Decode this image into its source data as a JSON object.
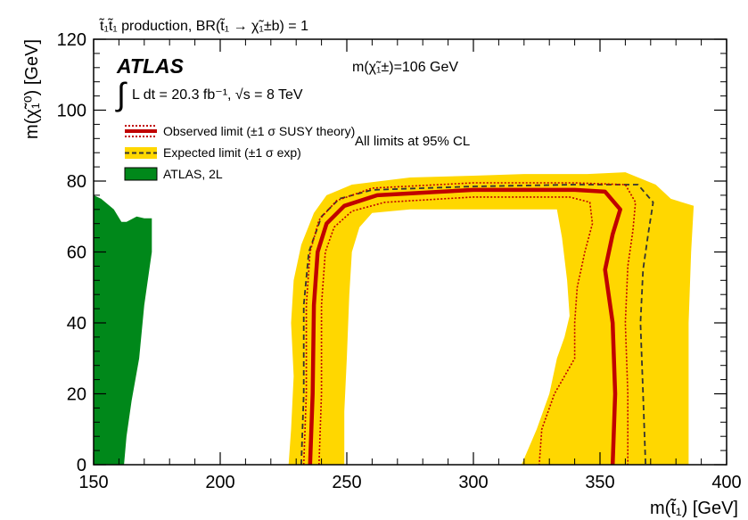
{
  "chart_data": {
    "type": "area",
    "title": "t̃₁t̃₁ production, BR(t̃₁ → χ̃₁±b) = 1",
    "xlabel": "m(t̃₁) [GeV]",
    "ylabel": "m(χ̃₁⁰) [GeV]",
    "xlim": [
      150,
      400
    ],
    "ylim": [
      0,
      120
    ],
    "xticks": [
      "150",
      "200",
      "250",
      "300",
      "350",
      "400"
    ],
    "yticks": [
      "0",
      "20",
      "40",
      "60",
      "80",
      "100",
      "120"
    ],
    "grid": false,
    "legend_placement": "top-left",
    "annotations": {
      "experiment": "ATLAS",
      "lumi_integral": "∫",
      "lumi_text": "L dt = 20.3 fb⁻¹, √s = 8 TeV",
      "chargino_mass": "m(χ̃₁±)=106 GeV",
      "cl_note": "All limits at 95% CL"
    },
    "legend": [
      {
        "label": "Observed limit (±1 σ SUSY theory)",
        "style": "observed"
      },
      {
        "label": "Expected limit (±1 σ exp)",
        "style": "expected"
      },
      {
        "label": "ATLAS, 2L",
        "style": "excluded_2L"
      }
    ],
    "colors": {
      "observed": "#c00000",
      "expected_band": "#ffd700",
      "expected_line": "#333333",
      "atlas_2l": "#00881a"
    },
    "series": [
      {
        "name": "ATLAS, 2L",
        "role": "excluded_2L",
        "points": [
          [
            150,
            76
          ],
          [
            153,
            75
          ],
          [
            158,
            72
          ],
          [
            161,
            68.5
          ],
          [
            163,
            68.5
          ],
          [
            167,
            70
          ],
          [
            170,
            69.5
          ],
          [
            173,
            69.5
          ],
          [
            173,
            60
          ],
          [
            170,
            45
          ],
          [
            168,
            30
          ],
          [
            165,
            18
          ],
          [
            163,
            8
          ],
          [
            162,
            0
          ],
          [
            150,
            0
          ]
        ]
      },
      {
        "name": "Expected ±1σ band",
        "role": "expected_band",
        "points": [
          [
            227,
            0
          ],
          [
            228,
            10
          ],
          [
            229,
            25
          ],
          [
            228,
            40
          ],
          [
            229,
            52
          ],
          [
            232,
            62
          ],
          [
            237,
            71
          ],
          [
            242,
            76
          ],
          [
            252,
            79
          ],
          [
            275,
            81
          ],
          [
            300,
            81.5
          ],
          [
            320,
            82
          ],
          [
            345,
            82
          ],
          [
            360,
            82.5
          ],
          [
            372,
            79
          ],
          [
            378,
            75
          ],
          [
            387,
            73
          ],
          [
            386,
            60
          ],
          [
            385,
            40
          ],
          [
            385,
            20
          ],
          [
            385,
            0
          ],
          [
            319,
            0
          ],
          [
            325,
            10
          ],
          [
            330,
            20
          ],
          [
            333,
            30
          ],
          [
            336,
            36
          ],
          [
            338,
            42
          ],
          [
            337,
            52
          ],
          [
            335,
            64
          ],
          [
            333,
            72
          ],
          [
            320,
            72
          ],
          [
            300,
            72
          ],
          [
            275,
            72
          ],
          [
            260,
            71
          ],
          [
            255,
            67
          ],
          [
            252,
            60
          ],
          [
            251,
            48
          ],
          [
            250,
            30
          ],
          [
            249,
            15
          ],
          [
            249,
            0
          ]
        ]
      },
      {
        "name": "Expected limit",
        "role": "expected",
        "points": [
          [
            232,
            0
          ],
          [
            233,
            20
          ],
          [
            233,
            45
          ],
          [
            235,
            60
          ],
          [
            240,
            70
          ],
          [
            247,
            75
          ],
          [
            260,
            77.5
          ],
          [
            300,
            78.5
          ],
          [
            340,
            79
          ],
          [
            365,
            79
          ],
          [
            371,
            74
          ],
          [
            369,
            65
          ],
          [
            367,
            55
          ],
          [
            366,
            40
          ],
          [
            367,
            20
          ],
          [
            368,
            0
          ]
        ]
      },
      {
        "name": "Observed limit",
        "role": "observed",
        "points": [
          [
            235.5,
            0
          ],
          [
            236.5,
            20
          ],
          [
            237,
            45
          ],
          [
            238.5,
            60
          ],
          [
            242,
            68
          ],
          [
            249,
            73
          ],
          [
            262,
            76
          ],
          [
            300,
            77.5
          ],
          [
            340,
            77.5
          ],
          [
            352,
            77
          ],
          [
            358,
            72
          ],
          [
            355,
            65
          ],
          [
            352,
            55
          ],
          [
            355,
            40
          ],
          [
            356,
            20
          ],
          [
            355,
            0
          ]
        ]
      },
      {
        "name": "Observed +1σ theory",
        "role": "observed_up",
        "points": [
          [
            239,
            0
          ],
          [
            240,
            20
          ],
          [
            240,
            45
          ],
          [
            241.5,
            60
          ],
          [
            245,
            67
          ],
          [
            252,
            71.5
          ],
          [
            265,
            74
          ],
          [
            300,
            75.5
          ],
          [
            338,
            75.5
          ],
          [
            346,
            74
          ],
          [
            347,
            68
          ],
          [
            344,
            60
          ],
          [
            341,
            50
          ],
          [
            340,
            40
          ],
          [
            340,
            30
          ],
          [
            332,
            20
          ],
          [
            327,
            10
          ],
          [
            326,
            0
          ]
        ]
      },
      {
        "name": "Observed −1σ theory",
        "role": "observed_down",
        "points": [
          [
            233,
            0
          ],
          [
            234,
            20
          ],
          [
            234,
            45
          ],
          [
            235.5,
            60
          ],
          [
            239,
            69
          ],
          [
            246,
            74.5
          ],
          [
            260,
            78
          ],
          [
            300,
            79.5
          ],
          [
            340,
            79.5
          ],
          [
            360,
            79
          ],
          [
            364,
            74
          ],
          [
            363,
            66
          ],
          [
            361,
            56
          ],
          [
            360,
            40
          ],
          [
            361,
            20
          ],
          [
            361,
            0
          ]
        ]
      }
    ]
  }
}
